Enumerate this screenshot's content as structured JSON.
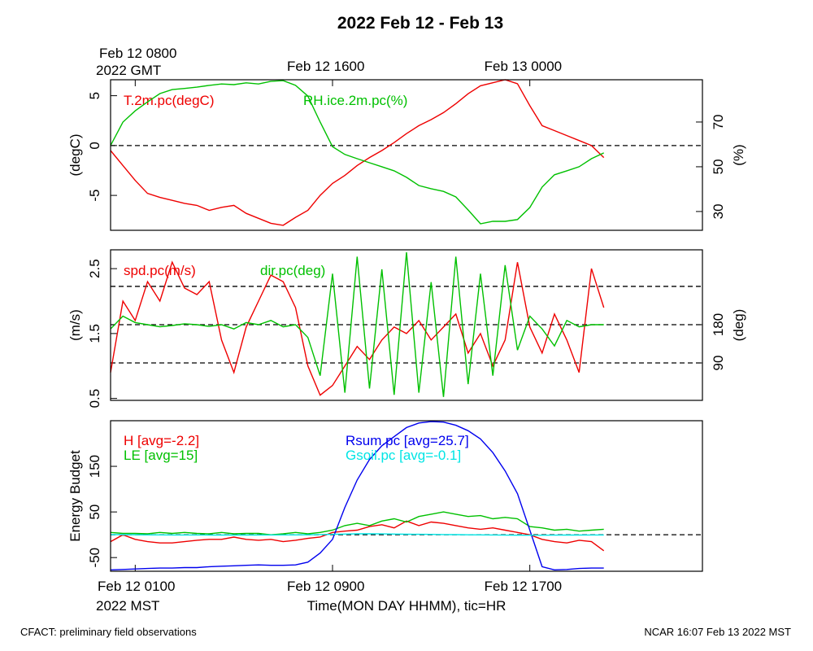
{
  "title": "2022 Feb 12 - Feb 13",
  "footer_left": "CFACT: preliminary field observations",
  "footer_right": "NCAR 16:07 Feb 13 2022 MST",
  "chart_data": [
    {
      "type": "line",
      "ylabel": "(degC)",
      "y2label": "(%)",
      "xlim": [
        0,
        24
      ],
      "x2ticks": [
        {
          "value": 1,
          "label": "Feb 12 0800"
        },
        {
          "value": 9,
          "label": "Feb 12 1600"
        },
        {
          "value": 17,
          "label": "Feb 13 0000"
        }
      ],
      "x2_sublabel": "2022 GMT",
      "ylim": [
        -8.5,
        6.6
      ],
      "yticks": [
        -5,
        0,
        5
      ],
      "hlines": [
        0
      ],
      "y2lim": [
        21.6,
        88.9
      ],
      "y2ticks": [
        30,
        50,
        70
      ],
      "x": [
        0,
        0.5,
        1,
        1.5,
        2,
        2.5,
        3,
        3.5,
        4,
        4.5,
        5,
        5.5,
        6,
        6.5,
        7,
        7.5,
        8,
        8.5,
        9,
        9.5,
        10,
        10.5,
        11,
        11.5,
        12,
        12.5,
        13,
        13.5,
        14,
        14.5,
        15,
        15.5,
        16,
        16.5,
        17,
        17.5,
        18,
        18.5,
        19,
        19.5,
        20
      ],
      "series": [
        {
          "name": "T.2m.pc(degC)",
          "color": "#ee0000",
          "values": [
            -0.5,
            -2,
            -3.5,
            -4.8,
            -5.2,
            -5.5,
            -5.8,
            -6,
            -6.5,
            -6.2,
            -6,
            -6.8,
            -7.3,
            -7.8,
            -8,
            -7.2,
            -6.5,
            -5,
            -3.8,
            -3,
            -2,
            -1.2,
            -0.5,
            0.3,
            1.2,
            2,
            2.6,
            3.3,
            4.2,
            5.2,
            6,
            6.3,
            6.6,
            6.2,
            4,
            2,
            1.5,
            1,
            0.5,
            0,
            -1.2
          ]
        },
        {
          "name": "RH.ice.2m.pc(%)",
          "color": "#00c000",
          "axis": "y2",
          "values": [
            59.5,
            70,
            75,
            79,
            82.7,
            84.5,
            85,
            85.6,
            86.4,
            87,
            86.7,
            87.5,
            87,
            88.2,
            88.5,
            86.4,
            81.6,
            70,
            59,
            55.5,
            53.6,
            51.8,
            50,
            48.2,
            45.3,
            41.6,
            40.2,
            39,
            36.5,
            30.7,
            24.5,
            25.6,
            25.6,
            26.4,
            31.8,
            40.9,
            46.4,
            48.2,
            50,
            53.6,
            56.2
          ]
        }
      ]
    },
    {
      "type": "line",
      "ylabel": "(m/s)",
      "y2label": "(deg)",
      "xlim": [
        0,
        24
      ],
      "ylim": [
        0.47,
        2.79
      ],
      "yticks": [
        0.5,
        1.5,
        2.5
      ],
      "y2lim": [
        2,
        356
      ],
      "y2ticks": [
        90,
        180
      ],
      "y2hlines": [
        90,
        180,
        270
      ],
      "x": [
        0,
        0.5,
        1,
        1.5,
        2,
        2.5,
        3,
        3.5,
        4,
        4.5,
        5,
        5.5,
        6,
        6.5,
        7,
        7.5,
        8,
        8.5,
        9,
        9.5,
        10,
        10.5,
        11,
        11.5,
        12,
        12.5,
        13,
        13.5,
        14,
        14.5,
        15,
        15.5,
        16,
        16.5,
        17,
        17.5,
        18,
        18.5,
        19,
        19.5,
        20
      ],
      "series": [
        {
          "name": "spd.pc(m/s)",
          "color": "#ee0000",
          "values": [
            0.9,
            2.0,
            1.7,
            2.3,
            2.0,
            2.6,
            2.2,
            2.1,
            2.3,
            1.4,
            0.9,
            1.6,
            2.0,
            2.4,
            2.3,
            1.9,
            1.0,
            0.55,
            0.7,
            1.0,
            1.3,
            1.1,
            1.4,
            1.6,
            1.5,
            1.7,
            1.4,
            1.6,
            1.8,
            1.2,
            1.5,
            1.0,
            1.4,
            2.6,
            1.6,
            1.2,
            1.8,
            1.4,
            0.9,
            2.5,
            1.9
          ]
        },
        {
          "name": "dir.pc(deg)",
          "color": "#00c000",
          "axis": "y2",
          "values": [
            170,
            200,
            185,
            180,
            175,
            178,
            182,
            180,
            176,
            180,
            170,
            185,
            180,
            190,
            175,
            180,
            150,
            60,
            300,
            20,
            340,
            30,
            310,
            15,
            350,
            20,
            280,
            10,
            340,
            40,
            300,
            60,
            320,
            120,
            200,
            170,
            130,
            190,
            175,
            180,
            180
          ]
        }
      ]
    },
    {
      "type": "line",
      "ylabel": "Energy Budget",
      "xlabel": "Time(MON DAY HHMM), tic=HR",
      "xlim": [
        0,
        24
      ],
      "xticks": [
        {
          "value": 1,
          "label": "Feb 12 0100"
        },
        {
          "value": 9,
          "label": "Feb 12 0900"
        },
        {
          "value": 17,
          "label": "Feb 12 1700"
        }
      ],
      "x_sublabel": "2022 MST",
      "ylim": [
        -80,
        250
      ],
      "yticks": [
        -50,
        50,
        150
      ],
      "hlines": [
        0
      ],
      "x": [
        0,
        0.5,
        1,
        1.5,
        2,
        2.5,
        3,
        3.5,
        4,
        4.5,
        5,
        5.5,
        6,
        6.5,
        7,
        7.5,
        8,
        8.5,
        9,
        9.5,
        10,
        10.5,
        11,
        11.5,
        12,
        12.5,
        13,
        13.5,
        14,
        14.5,
        15,
        15.5,
        16,
        16.5,
        17,
        17.5,
        18,
        18.5,
        19,
        19.5,
        20
      ],
      "series": [
        {
          "name": "H [avg=-2.2]",
          "color": "#ee0000",
          "values": [
            -15,
            0,
            -10,
            -15,
            -18,
            -18,
            -15,
            -12,
            -10,
            -10,
            -5,
            -10,
            -12,
            -10,
            -15,
            -12,
            -8,
            -5,
            5,
            8,
            10,
            18,
            22,
            15,
            30,
            20,
            28,
            25,
            20,
            15,
            12,
            15,
            10,
            5,
            0,
            -10,
            -15,
            -18,
            -12,
            -15,
            -35
          ]
        },
        {
          "name": "LE [avg=15]",
          "color": "#00c000",
          "values": [
            5,
            3,
            3,
            2,
            5,
            3,
            5,
            3,
            2,
            5,
            2,
            3,
            3,
            0,
            2,
            5,
            2,
            5,
            10,
            20,
            25,
            20,
            30,
            35,
            28,
            40,
            45,
            50,
            45,
            40,
            42,
            35,
            38,
            35,
            18,
            15,
            10,
            12,
            8,
            10,
            12
          ]
        },
        {
          "name": "Rsum.pc [avg=25.7]",
          "color": "#0000ee",
          "values": [
            -77,
            -76,
            -75,
            -74,
            -73,
            -73,
            -72,
            -72,
            -70,
            -69,
            -68,
            -67,
            -66,
            -67,
            -67,
            -66,
            -60,
            -40,
            -10,
            60,
            120,
            165,
            195,
            215,
            235,
            245,
            248,
            247,
            240,
            228,
            210,
            180,
            140,
            90,
            10,
            -70,
            -77,
            -76,
            -74,
            -73,
            -73
          ]
        },
        {
          "name": "Gsoil.pc [avg=-0.1]",
          "color": "#00e5e5",
          "values": [
            0.5,
            0.3,
            0,
            -0.2,
            -0.3,
            -0.4,
            -0.5,
            -0.5,
            -0.6,
            -0.6,
            -0.7,
            -0.6,
            -0.5,
            -0.4,
            -0.3,
            -0.2,
            0,
            0.5,
            1,
            1.5,
            2,
            2,
            1.8,
            1.5,
            1.2,
            1,
            0.8,
            0.5,
            0.2,
            0,
            -0.3,
            -0.5,
            -0.8,
            -1,
            -1,
            -0.9,
            -0.8,
            -0.7,
            -0.6,
            -0.5,
            -0.4
          ]
        }
      ]
    }
  ]
}
